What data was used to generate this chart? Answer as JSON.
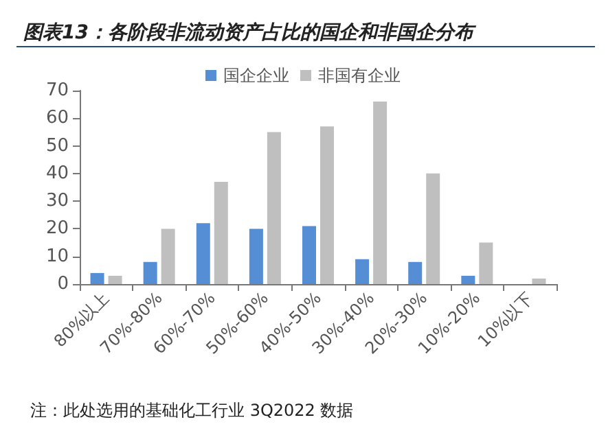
{
  "chart_data": {
    "type": "bar",
    "title": "图表13：各阶段非流动资产占比的国企和非国企分布",
    "categories": [
      "80%以上",
      "70%-80%",
      "60%-70%",
      "50%-60%",
      "40%-50%",
      "30%-40%",
      "20%-30%",
      "10%-20%",
      "10%以下"
    ],
    "series": [
      {
        "name": "国企企业",
        "color": "#558ed5",
        "values": [
          4,
          8,
          22,
          20,
          21,
          9,
          8,
          3,
          0
        ]
      },
      {
        "name": "非国有企业",
        "color": "#bfbfbf",
        "values": [
          3,
          20,
          37,
          55,
          57,
          66,
          40,
          15,
          2
        ]
      }
    ],
    "ylim": [
      0,
      70
    ],
    "yticks": [
      0,
      10,
      20,
      30,
      40,
      50,
      60,
      70
    ],
    "grid": false,
    "legend": "top",
    "annotations": [
      "注：此处选用的基础化工行业 3Q2022 数据"
    ]
  }
}
